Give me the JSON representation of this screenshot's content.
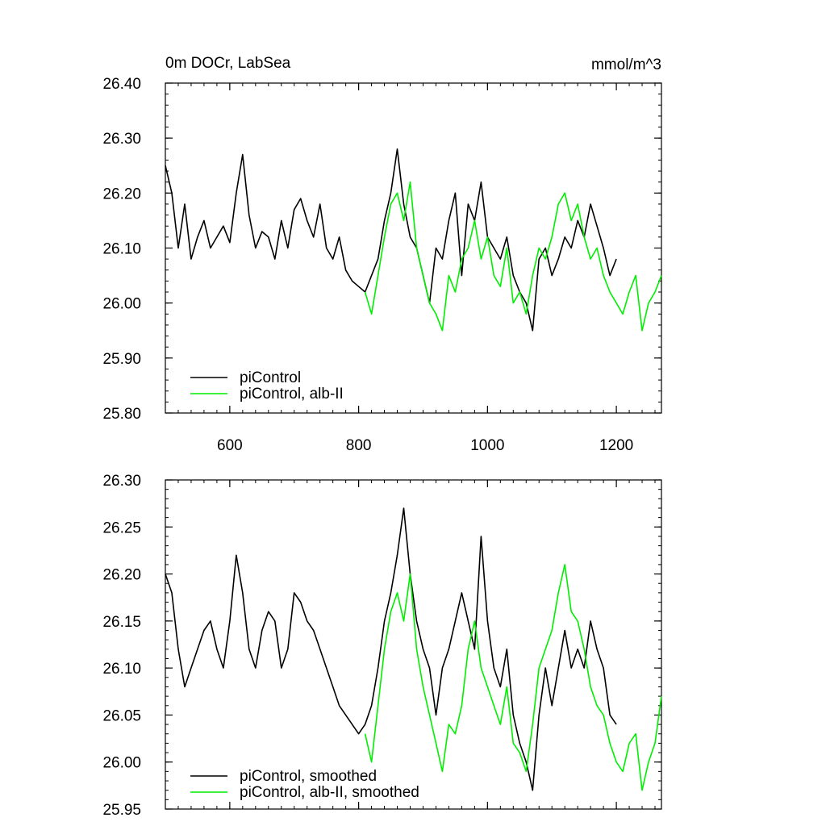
{
  "chart_data": [
    {
      "type": "line",
      "title": "0m DOCr, LabSea",
      "units": "mmol/m^3",
      "xlim": [
        500,
        1270
      ],
      "ylim": [
        25.8,
        26.4
      ],
      "x_ticks": [
        600,
        800,
        1000,
        1200
      ],
      "y_ticks": [
        25.8,
        25.9,
        26.0,
        26.1,
        26.2,
        26.3,
        26.4
      ],
      "x_tick_labels": [
        "600",
        "800",
        "1000",
        "1200"
      ],
      "y_tick_labels": [
        "25.80",
        "25.90",
        "26.00",
        "26.10",
        "26.20",
        "26.30",
        "26.40"
      ],
      "grid": false,
      "legend_position": "bottom-left",
      "series": [
        {
          "name": "piControl",
          "color": "#000000",
          "x": [
            500,
            510,
            520,
            530,
            540,
            550,
            560,
            570,
            580,
            590,
            600,
            610,
            620,
            630,
            640,
            650,
            660,
            670,
            680,
            690,
            700,
            710,
            720,
            730,
            740,
            750,
            760,
            770,
            780,
            790,
            800,
            810,
            820,
            830,
            840,
            850,
            860,
            870,
            880,
            890,
            900,
            910,
            920,
            930,
            940,
            950,
            960,
            970,
            980,
            990,
            1000,
            1010,
            1020,
            1030,
            1040,
            1050,
            1060,
            1070,
            1080,
            1090,
            1100,
            1110,
            1120,
            1130,
            1140,
            1150,
            1160,
            1170,
            1180,
            1190,
            1200
          ],
          "y": [
            26.25,
            26.2,
            26.1,
            26.18,
            26.08,
            26.12,
            26.15,
            26.1,
            26.12,
            26.14,
            26.11,
            26.2,
            26.27,
            26.16,
            26.1,
            26.13,
            26.12,
            26.08,
            26.15,
            26.1,
            26.17,
            26.19,
            26.15,
            26.12,
            26.18,
            26.1,
            26.08,
            26.12,
            26.06,
            26.04,
            26.03,
            26.02,
            26.05,
            26.08,
            26.15,
            26.2,
            26.28,
            26.18,
            26.12,
            26.1,
            26.05,
            26.0,
            26.1,
            26.08,
            26.15,
            26.2,
            26.05,
            26.18,
            26.15,
            26.22,
            26.12,
            26.1,
            26.08,
            26.12,
            26.05,
            26.02,
            26.0,
            25.95,
            26.08,
            26.1,
            26.05,
            26.08,
            26.12,
            26.1,
            26.15,
            26.12,
            26.18,
            26.14,
            26.1,
            26.05,
            26.08
          ]
        },
        {
          "name": "piControl, alb-II",
          "color": "#00ee00",
          "x": [
            810,
            820,
            830,
            840,
            850,
            860,
            870,
            880,
            890,
            900,
            910,
            920,
            930,
            940,
            950,
            960,
            970,
            980,
            990,
            1000,
            1010,
            1020,
            1030,
            1040,
            1050,
            1060,
            1070,
            1080,
            1090,
            1100,
            1110,
            1120,
            1130,
            1140,
            1150,
            1160,
            1170,
            1180,
            1190,
            1200,
            1210,
            1220,
            1230,
            1240,
            1250,
            1260,
            1270
          ],
          "y": [
            26.02,
            25.98,
            26.05,
            26.12,
            26.18,
            26.2,
            26.15,
            26.22,
            26.1,
            26.05,
            26.0,
            25.98,
            25.95,
            26.05,
            26.02,
            26.08,
            26.1,
            26.15,
            26.08,
            26.12,
            26.05,
            26.03,
            26.1,
            26.0,
            26.02,
            25.98,
            26.05,
            26.1,
            26.08,
            26.12,
            26.18,
            26.2,
            26.15,
            26.18,
            26.12,
            26.08,
            26.1,
            26.05,
            26.02,
            26.0,
            25.98,
            26.02,
            26.05,
            25.95,
            26.0,
            26.02,
            26.05
          ]
        }
      ]
    },
    {
      "type": "line",
      "xlim": [
        500,
        1270
      ],
      "ylim": [
        25.95,
        26.3
      ],
      "x_ticks": [
        600,
        800,
        1000,
        1200
      ],
      "y_ticks": [
        25.95,
        26.0,
        26.05,
        26.1,
        26.15,
        26.2,
        26.25,
        26.3
      ],
      "y_tick_labels": [
        "25.95",
        "26.00",
        "26.05",
        "26.10",
        "26.15",
        "26.20",
        "26.25",
        "26.30"
      ],
      "grid": false,
      "legend_position": "bottom-left",
      "series": [
        {
          "name": "piControl, smoothed",
          "color": "#000000",
          "x": [
            500,
            510,
            520,
            530,
            540,
            550,
            560,
            570,
            580,
            590,
            600,
            610,
            620,
            630,
            640,
            650,
            660,
            670,
            680,
            690,
            700,
            710,
            720,
            730,
            740,
            750,
            760,
            770,
            780,
            790,
            800,
            810,
            820,
            830,
            840,
            850,
            860,
            870,
            880,
            890,
            900,
            910,
            920,
            930,
            940,
            950,
            960,
            970,
            980,
            990,
            1000,
            1010,
            1020,
            1030,
            1040,
            1050,
            1060,
            1070,
            1080,
            1090,
            1100,
            1110,
            1120,
            1130,
            1140,
            1150,
            1160,
            1170,
            1180,
            1190,
            1200
          ],
          "y": [
            26.2,
            26.18,
            26.12,
            26.08,
            26.1,
            26.12,
            26.14,
            26.15,
            26.12,
            26.1,
            26.15,
            26.22,
            26.18,
            26.12,
            26.1,
            26.14,
            26.16,
            26.15,
            26.1,
            26.12,
            26.18,
            26.17,
            26.15,
            26.14,
            26.12,
            26.1,
            26.08,
            26.06,
            26.05,
            26.04,
            26.03,
            26.04,
            26.06,
            26.1,
            26.15,
            26.18,
            26.22,
            26.27,
            26.2,
            26.15,
            26.12,
            26.1,
            26.05,
            26.1,
            26.12,
            26.15,
            26.18,
            26.15,
            26.12,
            26.24,
            26.15,
            26.1,
            26.08,
            26.12,
            26.05,
            26.02,
            26.0,
            25.97,
            26.05,
            26.1,
            26.06,
            26.1,
            26.14,
            26.1,
            26.12,
            26.1,
            26.15,
            26.12,
            26.1,
            26.05,
            26.04
          ]
        },
        {
          "name": "piControl, alb-II, smoothed",
          "color": "#00ee00",
          "x": [
            810,
            820,
            830,
            840,
            850,
            860,
            870,
            880,
            890,
            900,
            910,
            920,
            930,
            940,
            950,
            960,
            970,
            980,
            990,
            1000,
            1010,
            1020,
            1030,
            1040,
            1050,
            1060,
            1070,
            1080,
            1090,
            1100,
            1110,
            1120,
            1130,
            1140,
            1150,
            1160,
            1170,
            1180,
            1190,
            1200,
            1210,
            1220,
            1230,
            1240,
            1250,
            1260,
            1270
          ],
          "y": [
            26.03,
            26.0,
            26.06,
            26.12,
            26.16,
            26.18,
            26.15,
            26.2,
            26.12,
            26.08,
            26.05,
            26.02,
            25.99,
            26.04,
            26.03,
            26.06,
            26.12,
            26.15,
            26.1,
            26.08,
            26.06,
            26.04,
            26.08,
            26.02,
            26.01,
            25.99,
            26.04,
            26.1,
            26.12,
            26.14,
            26.18,
            26.21,
            26.16,
            26.15,
            26.12,
            26.08,
            26.06,
            26.05,
            26.02,
            26.0,
            25.99,
            26.02,
            26.03,
            25.97,
            26.0,
            26.02,
            26.07
          ]
        }
      ]
    }
  ]
}
